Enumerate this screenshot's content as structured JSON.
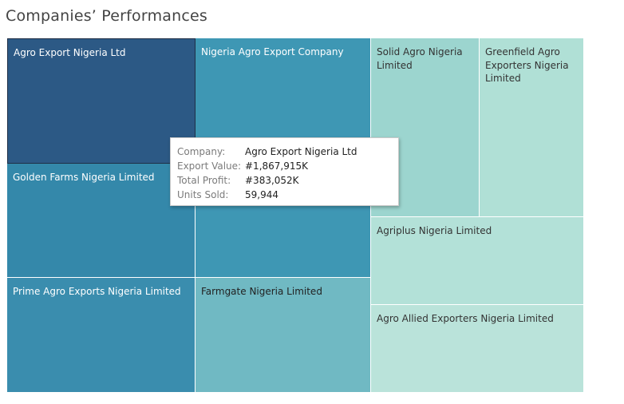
{
  "page": {
    "title": "Companies’ Performances"
  },
  "chart_data": {
    "type": "treemap",
    "title": "Companies’ Performances",
    "measure": "Export Value",
    "color_scale": [
      "#2c5985",
      "#b8e2d9"
    ],
    "items": [
      {
        "name": "Agro Export Nigeria Ltd",
        "color": "#2c5985",
        "text_color": "#ffffff",
        "selected": true
      },
      {
        "name": "Nigeria Agro Export Company",
        "color": "#3e97b4",
        "text_color": "#ffffff"
      },
      {
        "name": "Solid Agro Nigeria Limited",
        "color": "#9cd5cf",
        "text_color": "#333333"
      },
      {
        "name": "Greenfield Agro Exporters Nigeria Limited",
        "color": "#b0e0d6",
        "text_color": "#333333"
      },
      {
        "name": "Golden Farms Nigeria Limited",
        "color": "#3488aa",
        "text_color": "#ffffff"
      },
      {
        "name": "Agriplus Nigeria Limited",
        "color": "#b3e1d8",
        "text_color": "#333333"
      },
      {
        "name": "Prime Agro Exports Nigeria Limited",
        "color": "#3a8dae",
        "text_color": "#ffffff"
      },
      {
        "name": "Farmgate Nigeria Limited",
        "color": "#70b9c3",
        "text_color": "#222222"
      },
      {
        "name": "Agro Allied Exporters Nigeria Limited",
        "color": "#bae3da",
        "text_color": "#333333"
      }
    ],
    "tooltip": {
      "company_label": "Company:",
      "company_value": "Agro Export Nigeria Ltd",
      "export_label": "Export Value:",
      "export_value": "#1,867,915K",
      "profit_label": "Total Profit:",
      "profit_value": "#383,052K",
      "units_label": "Units Sold:",
      "units_value": "59,944"
    }
  }
}
